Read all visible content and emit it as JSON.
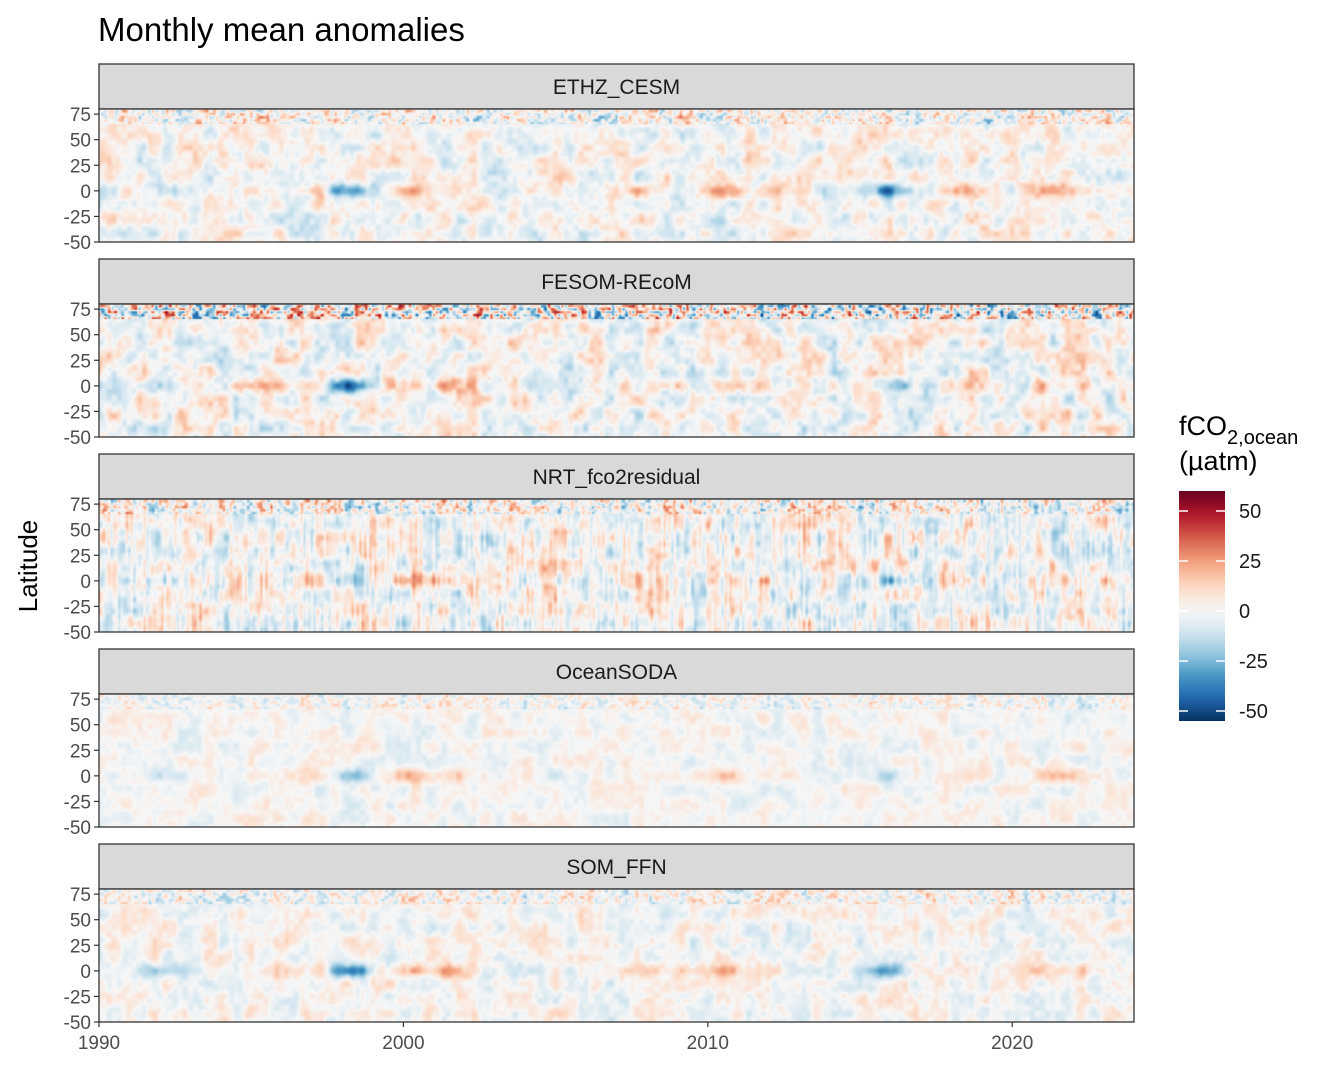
{
  "chart_data": {
    "type": "heatmap",
    "title": "Monthly mean anomalies",
    "xlabel": "",
    "ylabel": "Latitude",
    "xlim": [
      1990,
      2024
    ],
    "ylim": [
      -50,
      80
    ],
    "x_ticks": [
      "1990",
      "2000",
      "2010",
      "2020"
    ],
    "x_tick_values": [
      1990,
      2000,
      2010,
      2020
    ],
    "y_ticks": [
      "75",
      "50",
      "25",
      "0",
      "-25",
      "-50"
    ],
    "y_tick_values": [
      75,
      50,
      25,
      0,
      -25,
      -50
    ],
    "panels": [
      "ETHZ_CESM",
      "FESOM-REcoM",
      "NRT_fco2residual",
      "OceanSODA",
      "SOM_FFN"
    ],
    "panel_intensity": [
      0.55,
      0.65,
      0.6,
      0.35,
      0.45
    ],
    "panel_enso_strength": [
      0.9,
      0.75,
      0.7,
      0.55,
      0.8
    ],
    "enso_events": [
      {
        "year": 1992.0,
        "value": -0.45
      },
      {
        "year": 1995.2,
        "value": 0.3
      },
      {
        "year": 1997.2,
        "value": 0.4
      },
      {
        "year": 1998.2,
        "value": -1.0
      },
      {
        "year": 2000.2,
        "value": 0.6
      },
      {
        "year": 2001.6,
        "value": 0.45
      },
      {
        "year": 2003.2,
        "value": -0.2
      },
      {
        "year": 2005.2,
        "value": -0.1
      },
      {
        "year": 2008.2,
        "value": 0.35
      },
      {
        "year": 2010.5,
        "value": 0.5
      },
      {
        "year": 2012.0,
        "value": 0.2
      },
      {
        "year": 2015.9,
        "value": -0.75
      },
      {
        "year": 2018.4,
        "value": 0.25
      },
      {
        "year": 2021.3,
        "value": 0.4
      },
      {
        "year": 2022.5,
        "value": 0.3
      }
    ],
    "legend": {
      "title_main": "fCO",
      "title_sub": "2,ocean",
      "title_unit": "(µatm)",
      "ticks": [
        "50",
        "25",
        "0",
        "-25",
        "-50"
      ],
      "tick_values": [
        50,
        25,
        0,
        -25,
        -50
      ],
      "range": [
        -55,
        60
      ],
      "colors": [
        "#053061",
        "#2166ac",
        "#4393c3",
        "#92c5de",
        "#d1e5f0",
        "#f7f7f7",
        "#fddbc7",
        "#f4a582",
        "#d6604d",
        "#b2182b",
        "#67001f"
      ]
    }
  }
}
